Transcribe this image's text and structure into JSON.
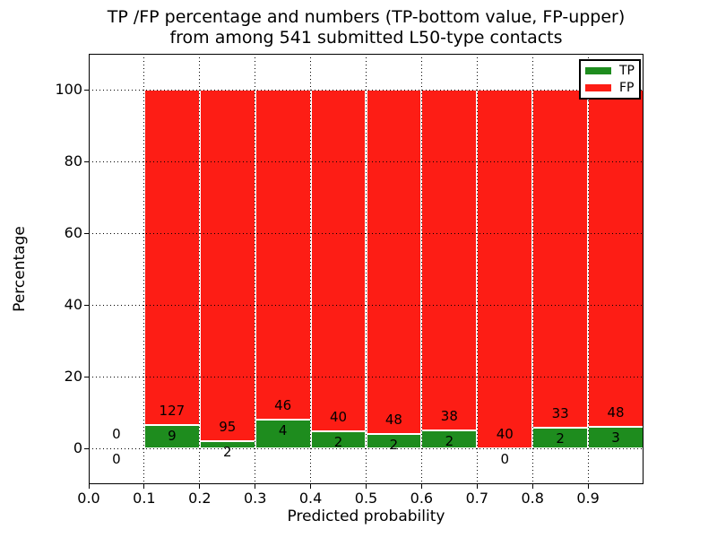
{
  "figure": {
    "title_line1": "TP /FP percentage and numbers (TP-bottom value, FP-upper)",
    "title_line2": "from among 541 submitted L50-type contacts"
  },
  "chart_data": {
    "type": "bar",
    "stacked": true,
    "normalized": "each bar totals 100%",
    "title": "TP /FP percentage and numbers (TP-bottom value, FP-upper) from among 541 submitted L50-type contacts",
    "xlabel": "Predicted probability",
    "ylabel": "Percentage",
    "xlim": [
      0.0,
      1.0
    ],
    "ylim": [
      -10,
      110
    ],
    "xticks": [
      0.0,
      0.1,
      0.2,
      0.3,
      0.4,
      0.5,
      0.6,
      0.7,
      0.8,
      0.9
    ],
    "xtick_labels": [
      "0.0",
      "0.1",
      "0.2",
      "0.3",
      "0.4",
      "0.5",
      "0.6",
      "0.7",
      "0.8",
      "0.9"
    ],
    "yticks": [
      0,
      20,
      40,
      60,
      80,
      100
    ],
    "ytick_labels": [
      "0",
      "20",
      "40",
      "60",
      "80",
      "100"
    ],
    "grid": "dotted black, drawn above bars",
    "bin_width": 0.1,
    "categories": [
      "0.0-0.1",
      "0.1-0.2",
      "0.2-0.3",
      "0.3-0.4",
      "0.4-0.5",
      "0.5-0.6",
      "0.6-0.7",
      "0.7-0.8",
      "0.8-0.9",
      "0.9-1.0"
    ],
    "series": [
      {
        "name": "TP",
        "color_key": "tp_green",
        "values": [
          0,
          9,
          2,
          4,
          2,
          2,
          2,
          0,
          2,
          3
        ]
      },
      {
        "name": "FP",
        "color_key": "fp_red",
        "values": [
          0,
          127,
          95,
          46,
          40,
          48,
          38,
          40,
          33,
          48
        ]
      }
    ],
    "bins": [
      {
        "x_start": 0.0,
        "x_end": 0.1,
        "tp": 0,
        "fp": 0
      },
      {
        "x_start": 0.1,
        "x_end": 0.2,
        "tp": 9,
        "fp": 127
      },
      {
        "x_start": 0.2,
        "x_end": 0.3,
        "tp": 2,
        "fp": 95
      },
      {
        "x_start": 0.3,
        "x_end": 0.4,
        "tp": 4,
        "fp": 46
      },
      {
        "x_start": 0.4,
        "x_end": 0.5,
        "tp": 2,
        "fp": 40
      },
      {
        "x_start": 0.5,
        "x_end": 0.6,
        "tp": 2,
        "fp": 48
      },
      {
        "x_start": 0.6,
        "x_end": 0.7,
        "tp": 2,
        "fp": 38
      },
      {
        "x_start": 0.7,
        "x_end": 0.8,
        "tp": 0,
        "fp": 40
      },
      {
        "x_start": 0.8,
        "x_end": 0.9,
        "tp": 2,
        "fp": 33
      },
      {
        "x_start": 0.9,
        "x_end": 1.0,
        "tp": 3,
        "fp": 48
      }
    ],
    "legend": {
      "position": "upper right",
      "entries": [
        {
          "label": "TP",
          "color": "#1e8c1e"
        },
        {
          "label": "FP",
          "color": "#fd1d15"
        }
      ]
    }
  },
  "colors": {
    "tp_green": "#1e8c1e",
    "fp_red": "#fd1d15",
    "grid": "#000000",
    "text": "#000000",
    "background": "#ffffff"
  }
}
